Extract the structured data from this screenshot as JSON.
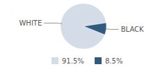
{
  "chart_data": {
    "type": "pie",
    "categories": [
      "WHITE",
      "BLACK"
    ],
    "values": [
      91.5,
      8.5
    ],
    "value_labels": [
      "91.5%",
      "8.5%"
    ],
    "colors": [
      "#d3dce7",
      "#2f5b80"
    ],
    "legend": "bottom"
  }
}
